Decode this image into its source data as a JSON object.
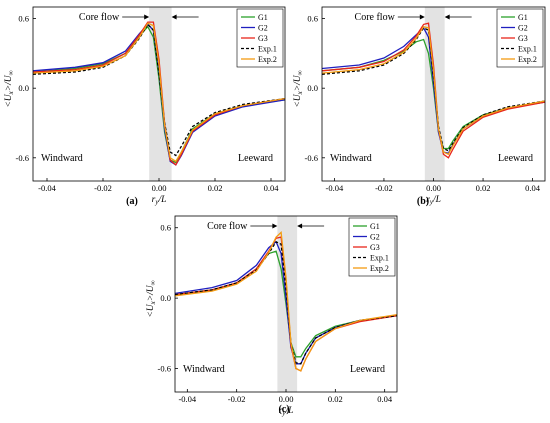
{
  "figure": {
    "panels": [
      {
        "label": "(a)",
        "xlabel": "r_y/L",
        "ylabel": "<U_x>/U_∞",
        "annotation": "Core flow",
        "left_text": "Windward",
        "right_text": "Leeward"
      },
      {
        "label": "(b)",
        "xlabel": "r_y/L",
        "ylabel": "<U_x>/U_∞",
        "annotation": "Core flow",
        "left_text": "Windward",
        "right_text": "Leeward"
      },
      {
        "label": "(c)",
        "xlabel": "r_y/L",
        "ylabel": "<U_x>/U_∞",
        "annotation": "Core flow",
        "left_text": "Windward",
        "right_text": "Leeward"
      }
    ],
    "series_styles": [
      {
        "name": "G1",
        "color": "#2ca02c",
        "dash": "solid"
      },
      {
        "name": "G2",
        "color": "#1f1fbf",
        "dash": "solid"
      },
      {
        "name": "G3",
        "color": "#e8251b",
        "dash": "solid"
      },
      {
        "name": "Exp.1",
        "color": "#000000",
        "dash": "dashed"
      },
      {
        "name": "Exp.2",
        "color": "#f39c12",
        "dash": "solid"
      }
    ]
  },
  "chart_data": [
    {
      "type": "line",
      "title": "(a)",
      "xlabel": "r_y/L",
      "ylabel": "<U_x>/U_∞",
      "xlim": [
        -0.045,
        0.045
      ],
      "ylim": [
        -0.8,
        0.7
      ],
      "xticks": [
        "-0.04",
        "-0.02",
        "0.00",
        "0.02",
        "0.04"
      ],
      "yticks": [
        "0.6",
        "0.0",
        "-0.6"
      ],
      "shaded_region": [
        -0.0035,
        0.0045
      ],
      "legend_position": "top-right",
      "grid": false,
      "series": [
        {
          "name": "G1",
          "x": [
            -0.045,
            -0.03,
            -0.02,
            -0.012,
            -0.007,
            -0.004,
            -0.002,
            0.0,
            0.002,
            0.004,
            0.006,
            0.008,
            0.012,
            0.02,
            0.03,
            0.045
          ],
          "y": [
            0.14,
            0.17,
            0.21,
            0.3,
            0.45,
            0.53,
            0.44,
            0.08,
            -0.38,
            -0.62,
            -0.64,
            -0.55,
            -0.35,
            -0.22,
            -0.15,
            -0.1
          ]
        },
        {
          "name": "G2",
          "x": [
            -0.045,
            -0.03,
            -0.02,
            -0.012,
            -0.007,
            -0.004,
            -0.002,
            0.0,
            0.002,
            0.004,
            0.006,
            0.008,
            0.012,
            0.02,
            0.03,
            0.045
          ],
          "y": [
            0.15,
            0.18,
            0.22,
            0.32,
            0.47,
            0.55,
            0.5,
            0.15,
            -0.35,
            -0.63,
            -0.66,
            -0.58,
            -0.38,
            -0.24,
            -0.16,
            -0.1
          ]
        },
        {
          "name": "G3",
          "x": [
            -0.045,
            -0.03,
            -0.02,
            -0.012,
            -0.007,
            -0.004,
            -0.002,
            0.0,
            0.002,
            0.004,
            0.006,
            0.008,
            0.012,
            0.02,
            0.03,
            0.045
          ],
          "y": [
            0.14,
            0.16,
            0.2,
            0.3,
            0.46,
            0.57,
            0.57,
            0.25,
            -0.3,
            -0.62,
            -0.66,
            -0.57,
            -0.37,
            -0.23,
            -0.15,
            -0.09
          ]
        },
        {
          "name": "Exp.1",
          "x": [
            -0.045,
            -0.03,
            -0.02,
            -0.012,
            -0.007,
            -0.004,
            -0.002,
            0.0,
            0.002,
            0.004,
            0.006,
            0.008,
            0.012,
            0.02,
            0.03,
            0.045
          ],
          "y": [
            0.12,
            0.14,
            0.18,
            0.28,
            0.43,
            0.55,
            0.5,
            0.12,
            -0.3,
            -0.55,
            -0.58,
            -0.5,
            -0.33,
            -0.21,
            -0.14,
            -0.09
          ]
        },
        {
          "name": "Exp.2",
          "x": [
            -0.045,
            -0.03,
            -0.02,
            -0.012,
            -0.007,
            -0.004,
            -0.002,
            0.0,
            0.002,
            0.004,
            0.006,
            0.008,
            0.012,
            0.02,
            0.03,
            0.045
          ],
          "y": [
            0.13,
            0.15,
            0.19,
            0.28,
            0.44,
            0.56,
            0.54,
            0.2,
            -0.32,
            -0.6,
            -0.63,
            -0.55,
            -0.36,
            -0.22,
            -0.15,
            -0.09
          ]
        }
      ]
    },
    {
      "type": "line",
      "title": "(b)",
      "xlabel": "r_y/L",
      "ylabel": "<U_x>/U_∞",
      "xlim": [
        -0.045,
        0.045
      ],
      "ylim": [
        -0.8,
        0.7
      ],
      "xticks": [
        "-0.04",
        "-0.02",
        "0.00",
        "0.02",
        "0.04"
      ],
      "yticks": [
        "0.6",
        "0.0",
        "-0.6"
      ],
      "shaded_region": [
        -0.0035,
        0.0045
      ],
      "legend_position": "top-right",
      "grid": false,
      "series": [
        {
          "name": "G1",
          "x": [
            -0.045,
            -0.03,
            -0.02,
            -0.012,
            -0.007,
            -0.004,
            -0.002,
            0.0,
            0.002,
            0.004,
            0.006,
            0.008,
            0.012,
            0.02,
            0.03,
            0.045
          ],
          "y": [
            0.15,
            0.18,
            0.24,
            0.32,
            0.4,
            0.42,
            0.3,
            0.0,
            -0.38,
            -0.52,
            -0.52,
            -0.45,
            -0.33,
            -0.23,
            -0.17,
            -0.12
          ]
        },
        {
          "name": "G2",
          "x": [
            -0.045,
            -0.03,
            -0.02,
            -0.012,
            -0.007,
            -0.004,
            -0.002,
            0.0,
            0.002,
            0.004,
            0.006,
            0.008,
            0.012,
            0.02,
            0.03,
            0.045
          ],
          "y": [
            0.17,
            0.2,
            0.26,
            0.36,
            0.46,
            0.52,
            0.44,
            0.05,
            -0.38,
            -0.55,
            -0.56,
            -0.48,
            -0.35,
            -0.24,
            -0.17,
            -0.12
          ]
        },
        {
          "name": "G3",
          "x": [
            -0.045,
            -0.03,
            -0.02,
            -0.012,
            -0.007,
            -0.004,
            -0.002,
            0.0,
            0.002,
            0.004,
            0.006,
            0.008,
            0.012,
            0.02,
            0.03,
            0.045
          ],
          "y": [
            0.15,
            0.18,
            0.23,
            0.33,
            0.45,
            0.55,
            0.56,
            0.2,
            -0.35,
            -0.57,
            -0.6,
            -0.52,
            -0.37,
            -0.25,
            -0.18,
            -0.12
          ]
        },
        {
          "name": "Exp.1",
          "x": [
            -0.045,
            -0.03,
            -0.02,
            -0.012,
            -0.007,
            -0.004,
            -0.002,
            0.0,
            0.002,
            0.004,
            0.006,
            0.008,
            0.012,
            0.02,
            0.03,
            0.045
          ],
          "y": [
            0.12,
            0.15,
            0.2,
            0.3,
            0.42,
            0.52,
            0.5,
            0.1,
            -0.33,
            -0.52,
            -0.54,
            -0.47,
            -0.34,
            -0.23,
            -0.16,
            -0.11
          ]
        },
        {
          "name": "Exp.2",
          "x": [
            -0.045,
            -0.03,
            -0.02,
            -0.012,
            -0.007,
            -0.004,
            -0.002,
            0.0,
            0.002,
            0.004,
            0.006,
            0.008,
            0.012,
            0.02,
            0.03,
            0.045
          ],
          "y": [
            0.13,
            0.16,
            0.21,
            0.31,
            0.43,
            0.53,
            0.52,
            0.15,
            -0.35,
            -0.55,
            -0.57,
            -0.49,
            -0.35,
            -0.24,
            -0.17,
            -0.11
          ]
        }
      ]
    },
    {
      "type": "line",
      "title": "(c)",
      "xlabel": "r_y/L",
      "ylabel": "<U_x>/U_∞",
      "xlim": [
        -0.045,
        0.045
      ],
      "ylim": [
        -0.8,
        0.7
      ],
      "xticks": [
        "-0.04",
        "-0.02",
        "0.00",
        "0.02",
        "0.04"
      ],
      "yticks": [
        "0.6",
        "0.0",
        "-0.6"
      ],
      "shaded_region": [
        -0.0035,
        0.0045
      ],
      "legend_position": "top-right",
      "grid": false,
      "series": [
        {
          "name": "G1",
          "x": [
            -0.045,
            -0.03,
            -0.02,
            -0.012,
            -0.007,
            -0.004,
            -0.002,
            0.0,
            0.002,
            0.004,
            0.006,
            0.008,
            0.012,
            0.02,
            0.03,
            0.045
          ],
          "y": [
            0.03,
            0.07,
            0.13,
            0.25,
            0.38,
            0.4,
            0.25,
            -0.05,
            -0.38,
            -0.5,
            -0.5,
            -0.43,
            -0.32,
            -0.24,
            -0.19,
            -0.15
          ]
        },
        {
          "name": "G2",
          "x": [
            -0.045,
            -0.03,
            -0.02,
            -0.012,
            -0.007,
            -0.004,
            -0.002,
            0.0,
            0.002,
            0.004,
            0.006,
            0.008,
            0.012,
            0.02,
            0.03,
            0.045
          ],
          "y": [
            0.04,
            0.09,
            0.15,
            0.28,
            0.43,
            0.48,
            0.38,
            0.0,
            -0.42,
            -0.56,
            -0.56,
            -0.47,
            -0.34,
            -0.25,
            -0.19,
            -0.15
          ]
        },
        {
          "name": "G3",
          "x": [
            -0.045,
            -0.03,
            -0.02,
            -0.012,
            -0.007,
            -0.004,
            -0.002,
            0.0,
            0.002,
            0.004,
            0.006,
            0.008,
            0.012,
            0.02,
            0.03,
            0.045
          ],
          "y": [
            0.03,
            0.07,
            0.13,
            0.25,
            0.4,
            0.51,
            0.52,
            0.15,
            -0.4,
            -0.6,
            -0.62,
            -0.52,
            -0.37,
            -0.26,
            -0.2,
            -0.15
          ]
        },
        {
          "name": "Exp.1",
          "x": [
            -0.045,
            -0.03,
            -0.02,
            -0.012,
            -0.007,
            -0.004,
            -0.002,
            0.0,
            0.002,
            0.004,
            0.006,
            0.008,
            0.012,
            0.02,
            0.03,
            0.045
          ],
          "y": [
            0.03,
            0.07,
            0.13,
            0.24,
            0.38,
            0.48,
            0.46,
            0.08,
            -0.38,
            -0.55,
            -0.56,
            -0.47,
            -0.34,
            -0.25,
            -0.19,
            -0.15
          ]
        },
        {
          "name": "Exp.2",
          "x": [
            -0.045,
            -0.03,
            -0.02,
            -0.012,
            -0.007,
            -0.004,
            -0.002,
            0.0,
            0.002,
            0.004,
            0.006,
            0.008,
            0.012,
            0.02,
            0.03,
            0.045
          ],
          "y": [
            0.02,
            0.06,
            0.12,
            0.23,
            0.39,
            0.52,
            0.56,
            0.18,
            -0.38,
            -0.6,
            -0.62,
            -0.52,
            -0.37,
            -0.26,
            -0.19,
            -0.14
          ]
        }
      ]
    }
  ]
}
